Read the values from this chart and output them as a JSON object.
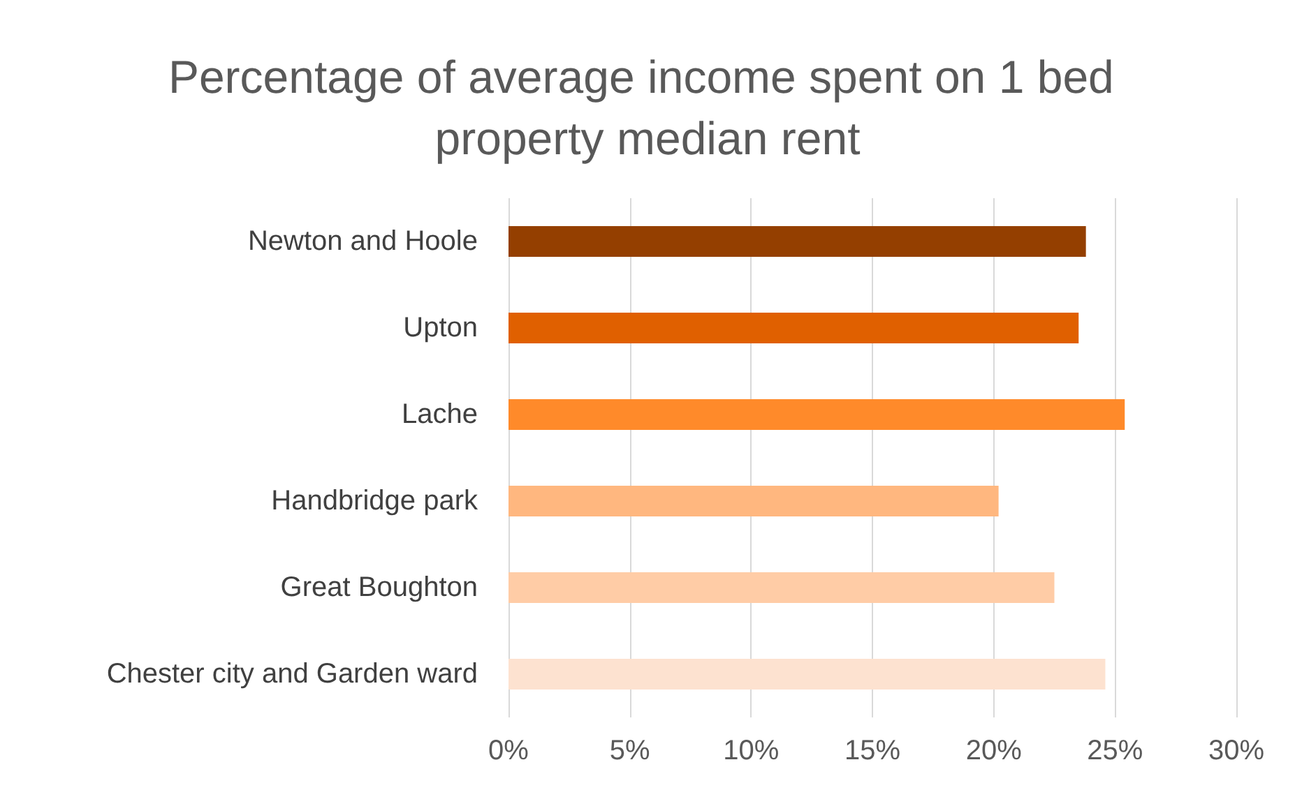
{
  "chart_data": {
    "type": "bar",
    "orientation": "horizontal",
    "title": "Percentage of average income spent on 1 bed property median rent",
    "categories": [
      "Newton and Hoole",
      "Upton",
      "Lache",
      "Handbridge park",
      "Great Boughton",
      "Chester city and Garden ward"
    ],
    "values": [
      23.8,
      23.5,
      25.4,
      20.2,
      22.5,
      24.6
    ],
    "colors": [
      "#943f00",
      "#e06000",
      "#ff8a2a",
      "#ffb77f",
      "#ffcca6",
      "#fde2d0"
    ],
    "xlim": [
      0,
      30
    ],
    "xticks": [
      {
        "value": 0,
        "label": "0%"
      },
      {
        "value": 5,
        "label": "5%"
      },
      {
        "value": 10,
        "label": "10%"
      },
      {
        "value": 15,
        "label": "15%"
      },
      {
        "value": 20,
        "label": "20%"
      },
      {
        "value": 25,
        "label": "25%"
      },
      {
        "value": 30,
        "label": "30%"
      }
    ],
    "grid": "x"
  }
}
